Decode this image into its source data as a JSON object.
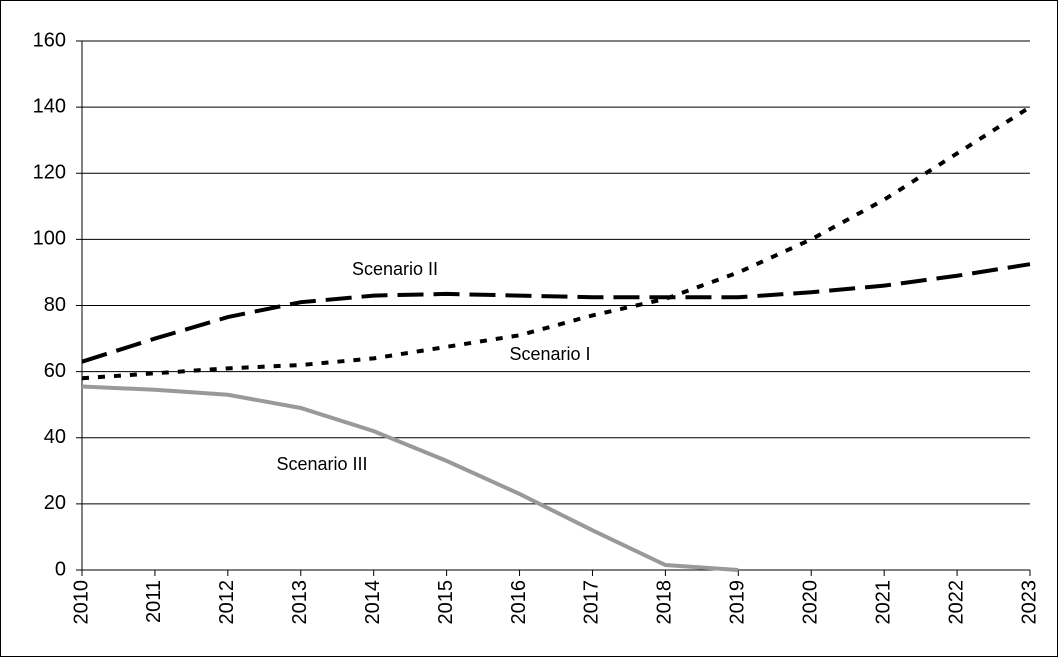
{
  "chart_data": {
    "type": "line",
    "categories": [
      "2010",
      "2011",
      "2012",
      "2013",
      "2014",
      "2015",
      "2016",
      "2017",
      "2018",
      "2019",
      "2020",
      "2021",
      "2022",
      "2023"
    ],
    "series": [
      {
        "name": "Scenario I",
        "color": "#000000",
        "style": "dotted",
        "values": [
          58,
          59.5,
          61,
          62,
          64,
          67.5,
          71,
          77,
          82,
          90,
          100,
          112,
          126,
          140
        ]
      },
      {
        "name": "Scenario II",
        "color": "#000000",
        "style": "dashed",
        "values": [
          63,
          70,
          76.5,
          81,
          83,
          83.5,
          83,
          82.5,
          82.5,
          82.5,
          84,
          86,
          89,
          92.5
        ]
      },
      {
        "name": "Scenario III",
        "color": "#999999",
        "style": "solid",
        "values": [
          55.5,
          54.5,
          53,
          49,
          42,
          33,
          23,
          12,
          1.5,
          0,
          null,
          null,
          null,
          null
        ]
      }
    ],
    "ylim": [
      0,
      160
    ],
    "yticks": [
      0,
      20,
      40,
      60,
      80,
      100,
      120,
      140,
      160
    ],
    "grid": true
  }
}
